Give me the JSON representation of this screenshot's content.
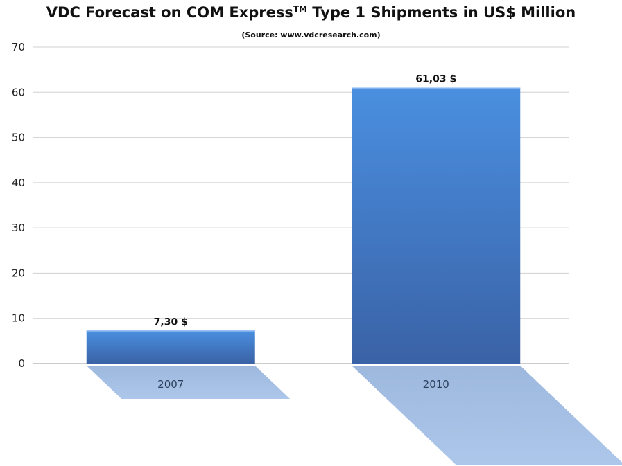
{
  "header": {
    "title_main": "VDC Forecast on COM Express",
    "title_tm": "TM",
    "title_rest": " Type 1 Shipments in US$ Million",
    "subtitle": "(Source: www.vdcresearch.com)"
  },
  "chart_data": {
    "type": "bar",
    "title": "VDC Forecast on COM Express™ Type 1 Shipments in US$ Million",
    "subtitle": "(Source: www.vdcresearch.com)",
    "categories": [
      "2007",
      "2010"
    ],
    "values": [
      7.3,
      61.03
    ],
    "data_labels": [
      "7,30 $",
      "61,03 $"
    ],
    "y_ticks": [
      "0",
      "10",
      "20",
      "30",
      "40",
      "50",
      "60",
      "70"
    ],
    "ylim": [
      0,
      70
    ],
    "grid": true,
    "legend": "none",
    "colors": {
      "bar_top": "#4a8fe0",
      "bar_bottom": "#3a62a6",
      "shadow": "#a9c4ea",
      "grid": "#d0d0d0"
    }
  }
}
